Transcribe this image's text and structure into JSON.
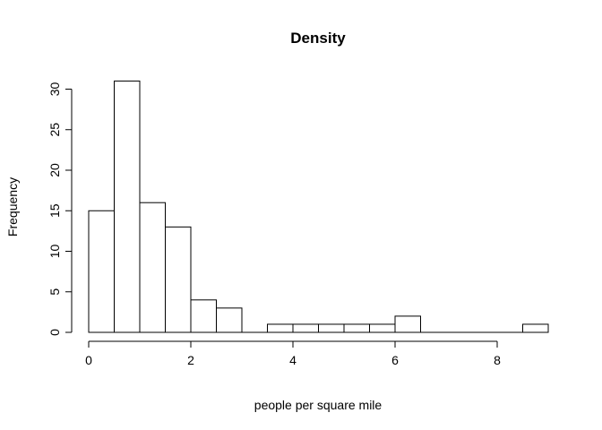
{
  "chart_data": {
    "type": "bar",
    "title": "Density",
    "xlabel": "people per square mile",
    "ylabel": "Frequency",
    "bin_width": 0.5,
    "bins": [
      {
        "start": 0.0,
        "end": 0.5,
        "value": 15
      },
      {
        "start": 0.5,
        "end": 1.0,
        "value": 31
      },
      {
        "start": 1.0,
        "end": 1.5,
        "value": 16
      },
      {
        "start": 1.5,
        "end": 2.0,
        "value": 13
      },
      {
        "start": 2.0,
        "end": 2.5,
        "value": 4
      },
      {
        "start": 2.5,
        "end": 3.0,
        "value": 3
      },
      {
        "start": 3.0,
        "end": 3.5,
        "value": 0
      },
      {
        "start": 3.5,
        "end": 4.0,
        "value": 1
      },
      {
        "start": 4.0,
        "end": 4.5,
        "value": 1
      },
      {
        "start": 4.5,
        "end": 5.0,
        "value": 1
      },
      {
        "start": 5.0,
        "end": 5.5,
        "value": 1
      },
      {
        "start": 5.5,
        "end": 6.0,
        "value": 1
      },
      {
        "start": 6.0,
        "end": 6.5,
        "value": 2
      },
      {
        "start": 6.5,
        "end": 7.0,
        "value": 0
      },
      {
        "start": 7.0,
        "end": 7.5,
        "value": 0
      },
      {
        "start": 7.5,
        "end": 8.0,
        "value": 0
      },
      {
        "start": 8.0,
        "end": 8.5,
        "value": 0
      },
      {
        "start": 8.5,
        "end": 9.0,
        "value": 1
      }
    ],
    "xlim": [
      0,
      9
    ],
    "ylim": [
      0,
      32
    ],
    "xticks": [
      0,
      2,
      4,
      6,
      8
    ],
    "yticks": [
      0,
      5,
      10,
      15,
      20,
      25,
      30
    ],
    "grid": false,
    "legend": "none",
    "colors": {
      "bar_fill": "#ffffff",
      "bar_stroke": "#000000",
      "axis": "#000000"
    }
  }
}
